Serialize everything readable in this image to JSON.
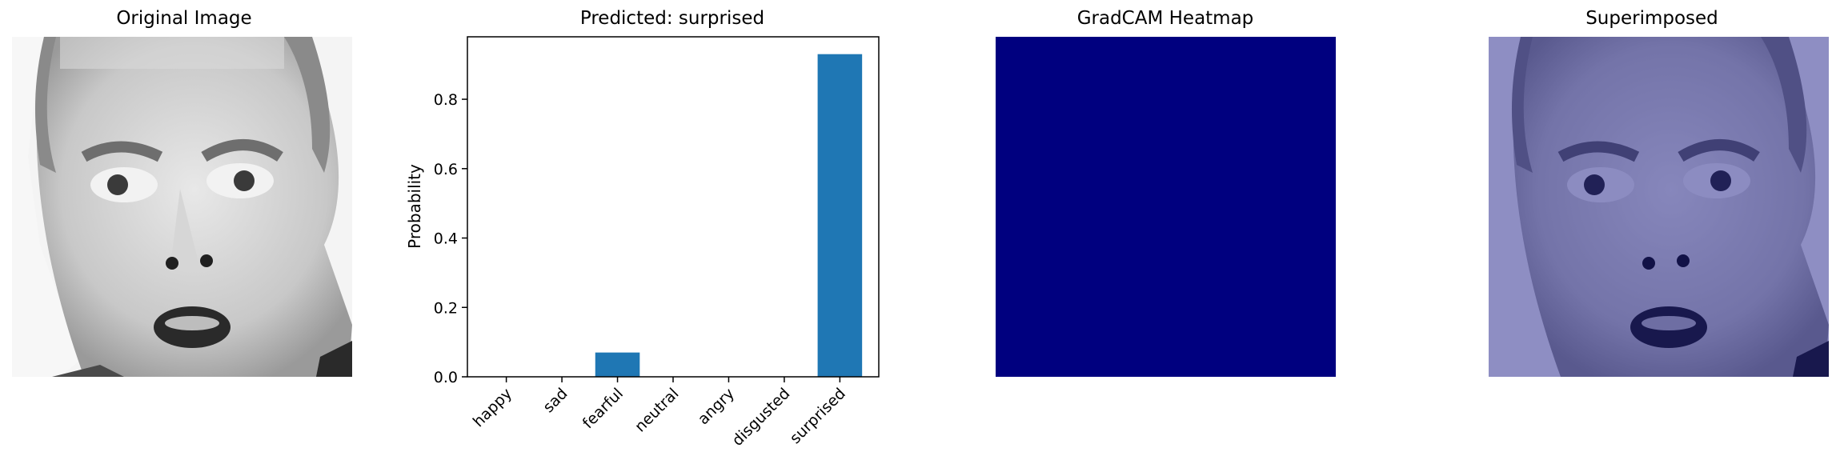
{
  "panels": {
    "original": {
      "title": "Original Image"
    },
    "gradcam": {
      "title": "GradCAM Heatmap"
    },
    "superimposed": {
      "title": "Superimposed"
    }
  },
  "colors": {
    "bar": "#1f77b4",
    "heatmap": "#00007f",
    "overlay": "#00007f"
  },
  "chart_data": {
    "type": "bar",
    "title": "Predicted: surprised",
    "xlabel": "",
    "ylabel": "Probability",
    "categories": [
      "happy",
      "sad",
      "fearful",
      "neutral",
      "angry",
      "disgusted",
      "surprised"
    ],
    "values": [
      0.0,
      0.0,
      0.07,
      0.0,
      0.0,
      0.0,
      0.93
    ],
    "ylim": [
      0,
      0.98
    ],
    "yticks": [
      "0.0",
      "0.2",
      "0.4",
      "0.6",
      "0.8"
    ],
    "grid": false,
    "legend": "none"
  }
}
